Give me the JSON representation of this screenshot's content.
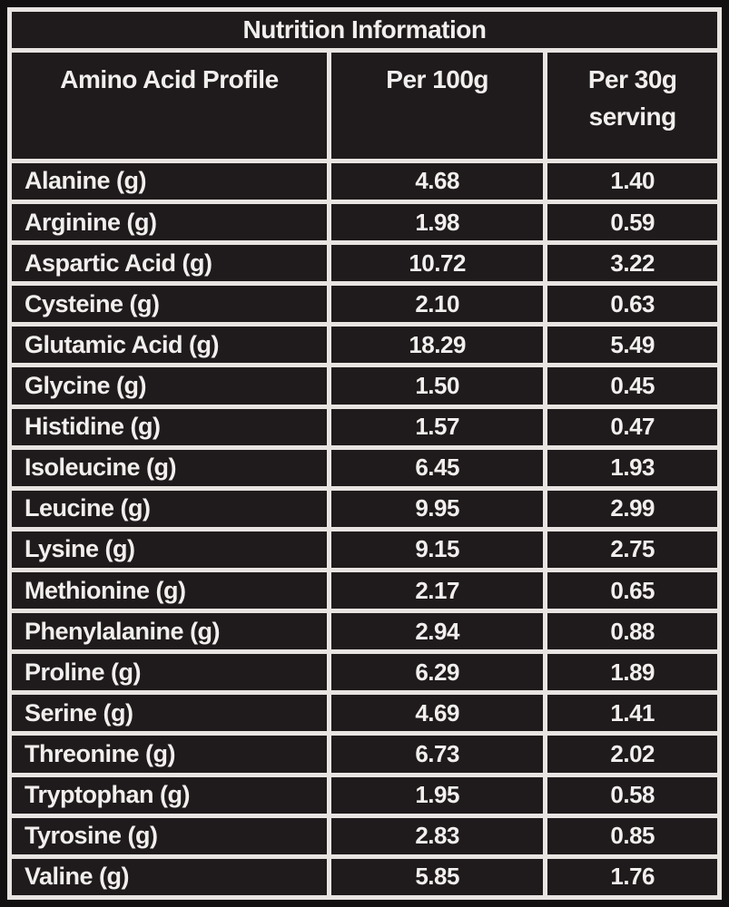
{
  "table": {
    "title": "Nutrition Information",
    "columns": [
      "Amino Acid Profile",
      "Per 100g",
      "Per 30g serving"
    ],
    "rows": [
      {
        "label": "Alanine (g)",
        "per_100g": "4.68",
        "per_30g_serving": "1.40"
      },
      {
        "label": "Arginine (g)",
        "per_100g": "1.98",
        "per_30g_serving": "0.59"
      },
      {
        "label": "Aspartic Acid (g)",
        "per_100g": "10.72",
        "per_30g_serving": "3.22"
      },
      {
        "label": "Cysteine (g)",
        "per_100g": "2.10",
        "per_30g_serving": "0.63"
      },
      {
        "label": "Glutamic Acid (g)",
        "per_100g": "18.29",
        "per_30g_serving": "5.49"
      },
      {
        "label": "Glycine (g)",
        "per_100g": "1.50",
        "per_30g_serving": "0.45"
      },
      {
        "label": "Histidine (g)",
        "per_100g": "1.57",
        "per_30g_serving": "0.47"
      },
      {
        "label": "Isoleucine (g)",
        "per_100g": "6.45",
        "per_30g_serving": "1.93"
      },
      {
        "label": "Leucine (g)",
        "per_100g": "9.95",
        "per_30g_serving": "2.99"
      },
      {
        "label": "Lysine (g)",
        "per_100g": "9.15",
        "per_30g_serving": "2.75"
      },
      {
        "label": "Methionine (g)",
        "per_100g": "2.17",
        "per_30g_serving": "0.65"
      },
      {
        "label": "Phenylalanine (g)",
        "per_100g": "2.94",
        "per_30g_serving": "0.88"
      },
      {
        "label": "Proline (g)",
        "per_100g": "6.29",
        "per_30g_serving": "1.89"
      },
      {
        "label": "Serine (g)",
        "per_100g": "4.69",
        "per_30g_serving": "1.41"
      },
      {
        "label": "Threonine (g)",
        "per_100g": "6.73",
        "per_30g_serving": "2.02"
      },
      {
        "label": "Tryptophan (g)",
        "per_100g": "1.95",
        "per_30g_serving": "0.58"
      },
      {
        "label": "Tyrosine (g)",
        "per_100g": "2.83",
        "per_30g_serving": "0.85"
      },
      {
        "label": "Valine (g)",
        "per_100g": "5.85",
        "per_30g_serving": "1.76"
      }
    ]
  },
  "colors": {
    "accent_blue": "#3c83c6",
    "cell_background": "#1f1a1b",
    "page_background": "#121011",
    "grid_border": "#e7e4e2",
    "value_text": "#f1efee"
  }
}
